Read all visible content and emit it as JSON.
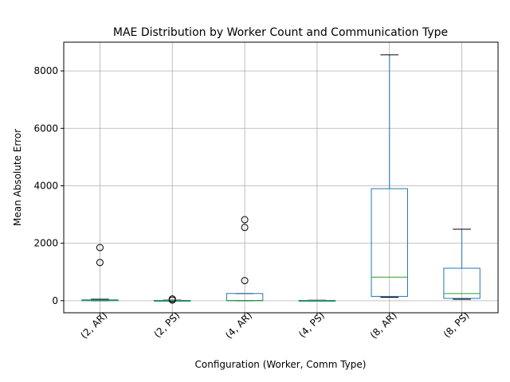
{
  "chart_data": {
    "type": "box",
    "title": "MAE Distribution by Worker Count and Communication Type",
    "xlabel": "Configuration (Worker, Comm Type)",
    "ylabel": "Mean Absolute Error",
    "ylim": [
      -420,
      9000
    ],
    "yticks": [
      0,
      2000,
      4000,
      6000,
      8000
    ],
    "grid": true,
    "categories": [
      "(2, AR)",
      "(2, PS)",
      "(4, AR)",
      "(4, PS)",
      "(8, AR)",
      "(8, PS)"
    ],
    "boxes": [
      {
        "category": "(2, AR)",
        "whisker_low": 0,
        "q1": 0,
        "median": 15,
        "q3": 30,
        "whisker_high": 50,
        "outliers": [
          1330,
          1850
        ]
      },
      {
        "category": "(2, PS)",
        "whisker_low": 0,
        "q1": 0,
        "median": 5,
        "q3": 10,
        "whisker_high": 20,
        "outliers": [
          20,
          60
        ]
      },
      {
        "category": "(4, AR)",
        "whisker_low": 0,
        "q1": 0,
        "median": 10,
        "q3": 250,
        "whisker_high": 250,
        "outliers": [
          700,
          2550,
          2820
        ]
      },
      {
        "category": "(4, PS)",
        "whisker_low": 0,
        "q1": 0,
        "median": 5,
        "q3": 10,
        "whisker_high": 15,
        "outliers": []
      },
      {
        "category": "(8, AR)",
        "whisker_low": 120,
        "q1": 150,
        "median": 820,
        "q3": 3900,
        "whisker_high": 8560,
        "outliers": []
      },
      {
        "category": "(8, PS)",
        "whisker_low": 50,
        "q1": 80,
        "median": 250,
        "q3": 1130,
        "whisker_high": 2490,
        "outliers": []
      }
    ],
    "colors": {
      "box": "#1f77b4",
      "median": "#2ca02c",
      "whisker_cap": "#000000",
      "grid": "#b0b0b0"
    }
  }
}
